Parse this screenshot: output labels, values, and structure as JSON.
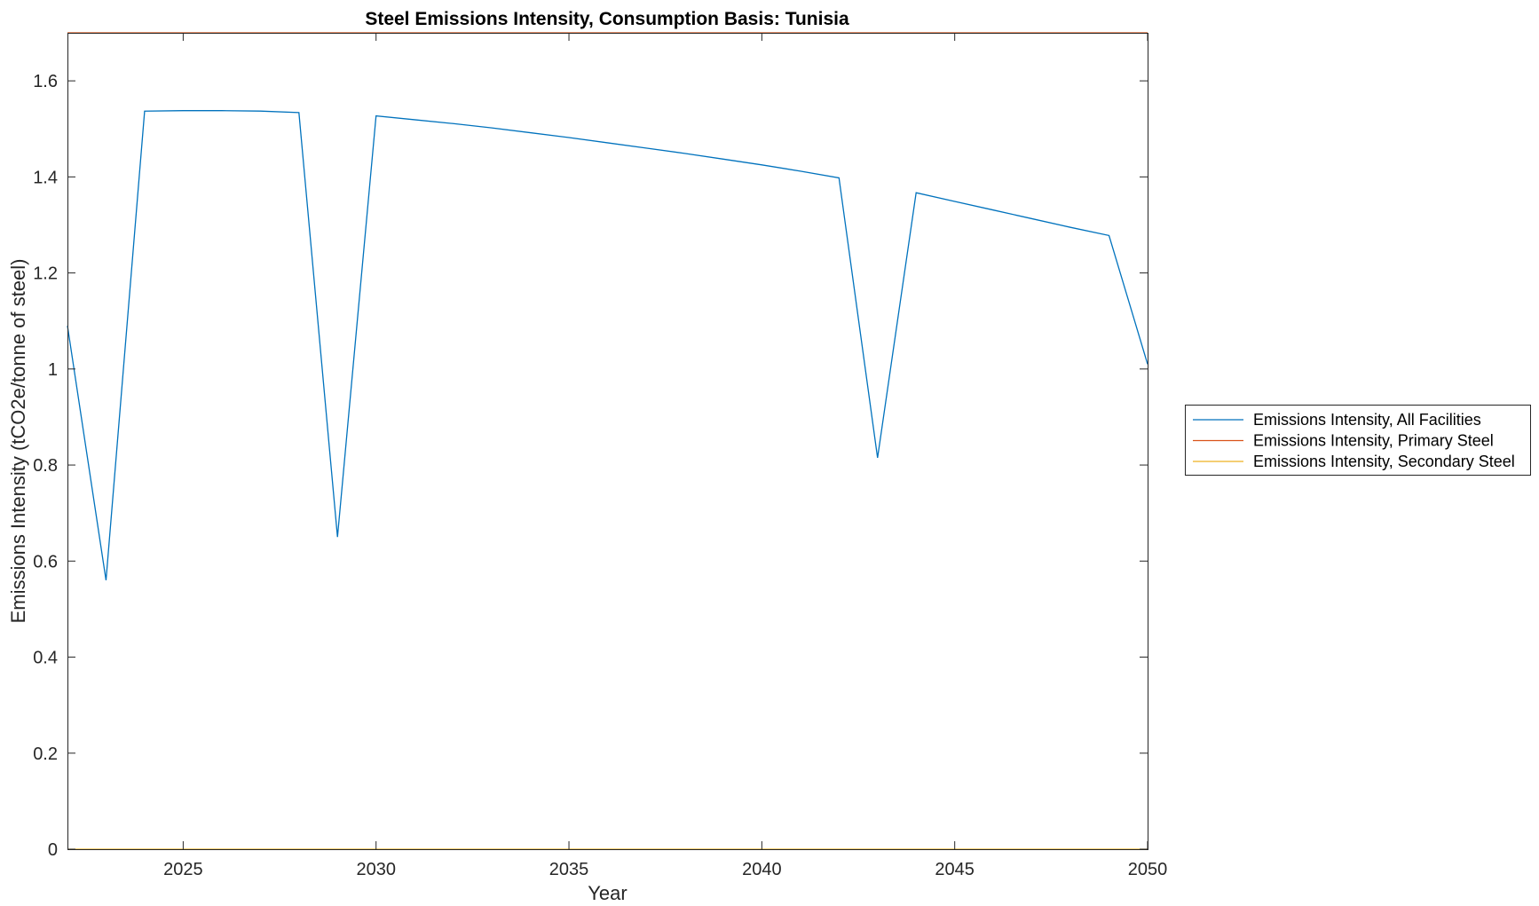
{
  "chart_data": {
    "type": "line",
    "title": "Steel Emissions Intensity, Consumption Basis: Tunisia",
    "xlabel": "Year",
    "ylabel": "Emissions Intensity (tCO2e/tonne of steel)",
    "xlim": [
      2022,
      2050
    ],
    "ylim": [
      0,
      1.7
    ],
    "xticks": [
      2025,
      2030,
      2035,
      2040,
      2045,
      2050
    ],
    "xtick_labels": [
      "2025",
      "2030",
      "2035",
      "2040",
      "2045",
      "2050"
    ],
    "yticks": [
      0,
      0.2,
      0.4,
      0.6,
      0.8,
      1,
      1.2,
      1.4,
      1.6
    ],
    "ytick_labels": [
      "0",
      "0.2",
      "0.4",
      "0.6",
      "0.8",
      "1",
      "1.2",
      "1.4",
      "1.6"
    ],
    "grid": false,
    "box": true,
    "legend_position": "outside-right",
    "series": [
      {
        "name": "Emissions Intensity, All Facilities",
        "color": "#0072BD",
        "x": [
          2022,
          2023,
          2024,
          2025,
          2026,
          2027,
          2028,
          2029,
          2030,
          2031,
          2032,
          2033,
          2034,
          2035,
          2036,
          2037,
          2038,
          2039,
          2040,
          2041,
          2042,
          2043,
          2044,
          2045,
          2046,
          2047,
          2048,
          2049,
          2050
        ],
        "values": [
          1.09,
          0.56,
          1.537,
          1.538,
          1.538,
          1.537,
          1.534,
          0.65,
          1.527,
          1.519,
          1.511,
          1.502,
          1.492,
          1.482,
          1.471,
          1.46,
          1.449,
          1.437,
          1.425,
          1.412,
          1.398,
          0.815,
          1.367,
          1.349,
          1.331,
          1.313,
          1.295,
          1.278,
          1.01
        ]
      },
      {
        "name": "Emissions Intensity, Primary Steel",
        "color": "#D95319",
        "x": [
          2022,
          2050
        ],
        "values": [
          1.7,
          1.7
        ]
      },
      {
        "name": "Emissions Intensity, Secondary Steel",
        "color": "#EDB120",
        "x": [
          2022,
          2050
        ],
        "values": [
          0,
          0
        ]
      }
    ]
  }
}
